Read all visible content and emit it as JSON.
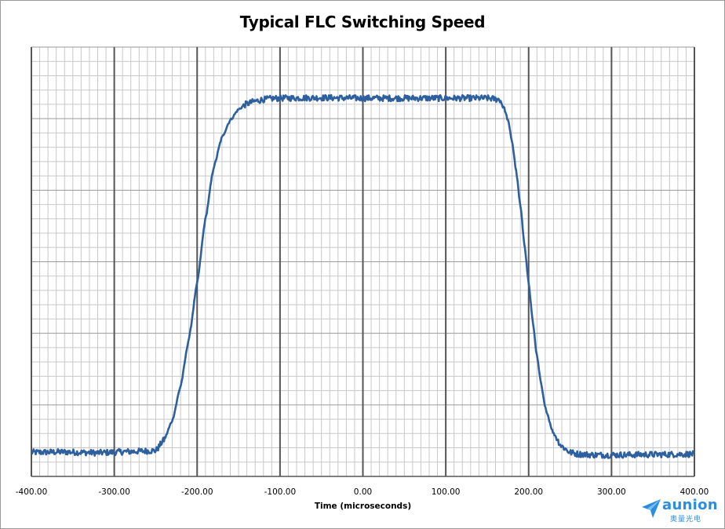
{
  "chart_data": {
    "type": "line",
    "title": "Typical FLC Switching Speed",
    "xlabel": "Time (microseconds)",
    "ylabel": "",
    "xlim": [
      -400,
      400
    ],
    "ylim": [
      0,
      100
    ],
    "x_ticks": [
      "-400.00",
      "-300.00",
      "-200.00",
      "-100.00",
      "0.00",
      "100.00",
      "200.00",
      "300.00",
      "400.00"
    ],
    "grid": true,
    "legend": "none",
    "line_color": "#2e5f9e",
    "series": [
      {
        "values_note_x": [
          -400,
          -360,
          -320,
          -280,
          -250,
          -240,
          -230,
          -220,
          -210,
          -200,
          -190,
          -180,
          -170,
          -160,
          -150,
          -140,
          -130,
          -120,
          -110,
          -100,
          -50,
          0,
          50,
          100,
          150,
          165,
          170,
          175,
          180,
          185,
          190,
          195,
          200,
          205,
          210,
          215,
          220,
          230,
          240,
          250,
          260,
          280,
          300,
          350,
          400
        ],
        "values_note_y": [
          5.6,
          5.7,
          5.5,
          5.8,
          6.0,
          8.5,
          13,
          21,
          32,
          45,
          60,
          72,
          79,
          83,
          85.5,
          86.8,
          87.4,
          87.8,
          88.0,
          88.1,
          88.2,
          88.1,
          88.1,
          88.1,
          88.1,
          87.8,
          86.0,
          83.0,
          78.0,
          71.0,
          63.0,
          54.0,
          45.0,
          36.0,
          28.0,
          21.5,
          16.0,
          10.0,
          7.0,
          5.6,
          5.2,
          5.0,
          5.0,
          5.1,
          5.2
        ]
      }
    ]
  },
  "logo": {
    "word": "aunion",
    "sub": "奥量光电",
    "color": "#2a8de0"
  }
}
